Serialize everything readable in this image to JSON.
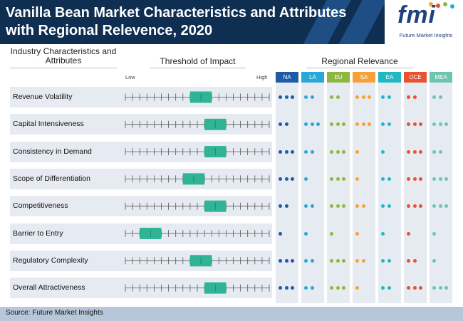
{
  "title_line1": "Vanilla Bean Market Characteristics and Attributes",
  "title_line2": "with Regional Relevence, 2020",
  "logo": {
    "letters": "fmi",
    "tagline": "Future Market Insights"
  },
  "source": "Source: Future Market Insights",
  "chart_data": {
    "type": "table",
    "column_headers": {
      "attributes": "Industry Characteristics and Attributes",
      "threshold": "Threshold of Impact",
      "regional": "Regional Relevance"
    },
    "scale_labels": {
      "low": "Low",
      "high": "High"
    },
    "threshold_scale": {
      "min": 0,
      "max": 20
    },
    "regions": [
      {
        "code": "NA",
        "color": "#1e5aa8"
      },
      {
        "code": "LA",
        "color": "#29a8d8"
      },
      {
        "code": "EU",
        "color": "#8cb83d"
      },
      {
        "code": "SA",
        "color": "#f5a13b"
      },
      {
        "code": "EA",
        "color": "#20b9c3"
      },
      {
        "code": "OCE",
        "color": "#e8522f"
      },
      {
        "code": "MEA",
        "color": "#6cc5b0"
      }
    ],
    "rows": [
      {
        "label": "Revenue Volatility",
        "threshold": [
          9,
          12
        ],
        "relevance": [
          3,
          2,
          2,
          3,
          2,
          2,
          2
        ]
      },
      {
        "label": "Capital Intensiveness",
        "threshold": [
          11,
          14
        ],
        "relevance": [
          2,
          3,
          3,
          3,
          2,
          3,
          3
        ]
      },
      {
        "label": "Consistency in Demand",
        "threshold": [
          11,
          14
        ],
        "relevance": [
          3,
          2,
          3,
          1,
          1,
          3,
          2
        ]
      },
      {
        "label": "Scope of Differentiation",
        "threshold": [
          8,
          11
        ],
        "relevance": [
          3,
          1,
          3,
          1,
          2,
          3,
          3
        ]
      },
      {
        "label": "Competitiveness",
        "threshold": [
          11,
          14
        ],
        "relevance": [
          2,
          2,
          3,
          2,
          2,
          3,
          3
        ]
      },
      {
        "label": "Barrier to Entry",
        "threshold": [
          2,
          5
        ],
        "relevance": [
          1,
          1,
          1,
          1,
          1,
          1,
          1
        ]
      },
      {
        "label": "Regulatory Complexity",
        "threshold": [
          9,
          12
        ],
        "relevance": [
          3,
          2,
          3,
          2,
          2,
          2,
          1
        ]
      },
      {
        "label": "Overall Attractiveness",
        "threshold": [
          11,
          14
        ],
        "relevance": [
          3,
          2,
          3,
          1,
          2,
          3,
          3
        ]
      }
    ]
  }
}
